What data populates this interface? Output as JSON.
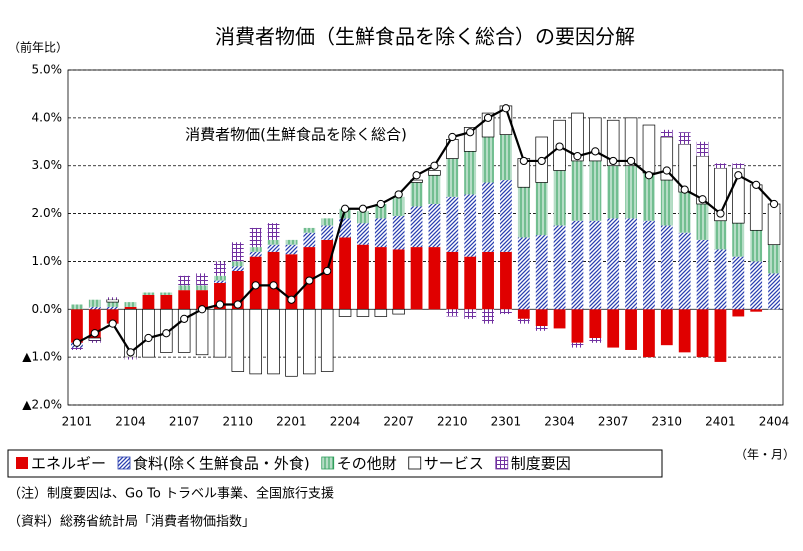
{
  "chart_data": {
    "type": "bar",
    "title": "消費者物価（生鮮食品を除く総合）の要因分解",
    "y_unit_label": "（前年比）",
    "x_unit_label": "（年・月）",
    "categories": [
      "2101",
      null,
      null,
      "2104",
      null,
      null,
      "2107",
      null,
      null,
      "2110",
      null,
      null,
      "2201",
      null,
      null,
      "2204",
      null,
      null,
      "2207",
      null,
      null,
      "2210",
      null,
      null,
      "2301",
      null,
      null,
      "2304",
      null,
      null,
      "2307",
      null,
      null,
      "2310",
      null,
      null,
      "2401",
      null,
      null,
      "2404"
    ],
    "ylim": [
      -2.0,
      5.0
    ],
    "yticks": [
      {
        "value": 5.0,
        "label": "5.0%"
      },
      {
        "value": 4.0,
        "label": "4.0%"
      },
      {
        "value": 3.0,
        "label": "3.0%"
      },
      {
        "value": 2.0,
        "label": "2.0%"
      },
      {
        "value": 1.0,
        "label": "1.0%"
      },
      {
        "value": 0.0,
        "label": "0.0%"
      },
      {
        "value": -1.0,
        "label": "▲1.0%"
      },
      {
        "value": -2.0,
        "label": "▲2.0%"
      }
    ],
    "grid": true,
    "stacked": true,
    "series": [
      {
        "name": "エネルギー",
        "color": "#e00000",
        "hatch": "solid",
        "values": [
          -0.7,
          -0.6,
          -0.3,
          0.05,
          0.3,
          0.3,
          0.4,
          0.4,
          0.55,
          0.8,
          1.1,
          1.2,
          1.15,
          1.3,
          1.45,
          1.5,
          1.35,
          1.3,
          1.25,
          1.3,
          1.3,
          1.2,
          1.1,
          1.2,
          1.2,
          -0.2,
          -0.35,
          -0.4,
          -0.7,
          -0.6,
          -0.8,
          -0.85,
          -1.0,
          -0.75,
          -0.9,
          -1.0,
          -1.1,
          -0.15,
          -0.05,
          0.0
        ]
      },
      {
        "name": "食料(除く生鮮食品・外食)",
        "color": "#2a3fb0",
        "hatch": "diagonal",
        "values": [
          -0.1,
          0.05,
          0.05,
          0.0,
          0.0,
          0.0,
          0.0,
          0.0,
          0.05,
          0.1,
          0.1,
          0.15,
          0.2,
          0.3,
          0.3,
          0.4,
          0.45,
          0.6,
          0.7,
          0.85,
          0.9,
          1.15,
          1.3,
          1.45,
          1.5,
          1.5,
          1.55,
          1.75,
          1.85,
          1.85,
          1.9,
          1.9,
          1.85,
          1.75,
          1.6,
          1.45,
          1.25,
          1.1,
          1.0,
          0.75
        ]
      },
      {
        "name": "その他財",
        "color": "#2e9e5b",
        "hatch": "vertical",
        "values": [
          0.1,
          0.15,
          0.1,
          0.1,
          0.05,
          0.05,
          0.1,
          0.1,
          0.1,
          0.1,
          0.1,
          0.1,
          0.1,
          0.1,
          0.15,
          0.2,
          0.25,
          0.3,
          0.4,
          0.5,
          0.6,
          0.8,
          0.9,
          0.95,
          0.95,
          1.05,
          1.1,
          1.15,
          1.25,
          1.25,
          1.1,
          1.1,
          1.0,
          0.95,
          0.85,
          0.75,
          0.6,
          0.7,
          0.65,
          0.6
        ]
      },
      {
        "name": "サービス",
        "color": "#ffffff",
        "hatch": "outline",
        "values": [
          0.0,
          -0.05,
          0.05,
          -1.0,
          -1.0,
          -0.9,
          -0.9,
          -0.95,
          -1.0,
          -1.3,
          -1.35,
          -1.35,
          -1.4,
          -1.35,
          -1.3,
          -0.15,
          -0.15,
          -0.15,
          -0.1,
          0.05,
          0.1,
          0.4,
          0.5,
          0.5,
          0.6,
          0.6,
          0.95,
          1.05,
          1.0,
          0.9,
          0.95,
          1.0,
          1.0,
          0.9,
          1.0,
          1.0,
          1.1,
          1.15,
          0.95,
          0.85
        ]
      },
      {
        "name": "制度要因",
        "color": "#7030a0",
        "hatch": "grid",
        "values": [
          -0.05,
          -0.05,
          0.05,
          -0.05,
          0.0,
          0.0,
          0.2,
          0.25,
          0.3,
          0.4,
          0.4,
          0.35,
          0.0,
          0.0,
          0.0,
          0.0,
          0.0,
          0.0,
          0.0,
          0.0,
          0.0,
          -0.15,
          -0.2,
          -0.3,
          -0.1,
          -0.1,
          -0.1,
          0.0,
          -0.1,
          -0.1,
          0.0,
          0.0,
          0.0,
          0.15,
          0.25,
          0.3,
          0.1,
          0.1,
          0.0,
          0.0
        ]
      }
    ],
    "line": {
      "label": "消費者物価(生鮮食品を除く総合)",
      "color": "#000000",
      "values": [
        -0.7,
        -0.5,
        -0.3,
        -0.9,
        -0.6,
        -0.5,
        -0.2,
        0.0,
        0.1,
        0.1,
        0.5,
        0.5,
        0.2,
        0.6,
        0.8,
        2.1,
        2.1,
        2.2,
        2.4,
        2.8,
        3.0,
        3.6,
        3.7,
        4.0,
        4.2,
        3.1,
        3.1,
        3.4,
        3.2,
        3.3,
        3.1,
        3.1,
        2.8,
        2.9,
        2.5,
        2.3,
        2.0,
        2.8,
        2.6,
        2.2
      ]
    },
    "notes": [
      "（注）制度要因は、Go To トラベル事業、全国旅行支援",
      "（資料）総務省統計局「消費者物価指数」"
    ]
  }
}
